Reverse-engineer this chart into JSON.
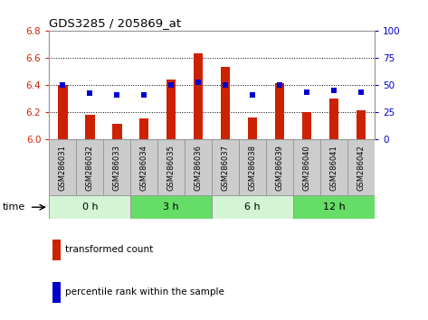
{
  "title": "GDS3285 / 205869_at",
  "samples": [
    "GSM286031",
    "GSM286032",
    "GSM286033",
    "GSM286034",
    "GSM286035",
    "GSM286036",
    "GSM286037",
    "GSM286038",
    "GSM286039",
    "GSM286040",
    "GSM286041",
    "GSM286042"
  ],
  "red_values": [
    6.4,
    6.18,
    6.11,
    6.15,
    6.44,
    6.63,
    6.53,
    6.16,
    6.41,
    6.2,
    6.3,
    6.21
  ],
  "blue_values": [
    50,
    42,
    41,
    41,
    50,
    52,
    50,
    41,
    50,
    43,
    45,
    43
  ],
  "ylim_left": [
    6.0,
    6.8
  ],
  "ylim_right": [
    0,
    100
  ],
  "yticks_left": [
    6.0,
    6.2,
    6.4,
    6.6,
    6.8
  ],
  "yticks_right": [
    0,
    25,
    50,
    75,
    100
  ],
  "time_groups": [
    {
      "label": "0 h",
      "start": 0,
      "end": 3,
      "color": "#d4f5d4"
    },
    {
      "label": "3 h",
      "start": 3,
      "end": 6,
      "color": "#66dd66"
    },
    {
      "label": "6 h",
      "start": 6,
      "end": 9,
      "color": "#d4f5d4"
    },
    {
      "label": "12 h",
      "start": 9,
      "end": 12,
      "color": "#66dd66"
    }
  ],
  "bar_color": "#cc2200",
  "dot_color": "#0000cc",
  "grid_color": "#000000",
  "bg_color": "#ffffff",
  "plot_bg": "#ffffff",
  "bar_width": 0.35,
  "base_value": 6.0,
  "legend_red": "transformed count",
  "legend_blue": "percentile rank within the sample",
  "time_label": "time",
  "tick_label_color_left": "#cc2200",
  "tick_label_color_right": "#0000cc",
  "label_bg_color": "#cccccc",
  "label_edge_color": "#999999",
  "spine_color": "#999999"
}
